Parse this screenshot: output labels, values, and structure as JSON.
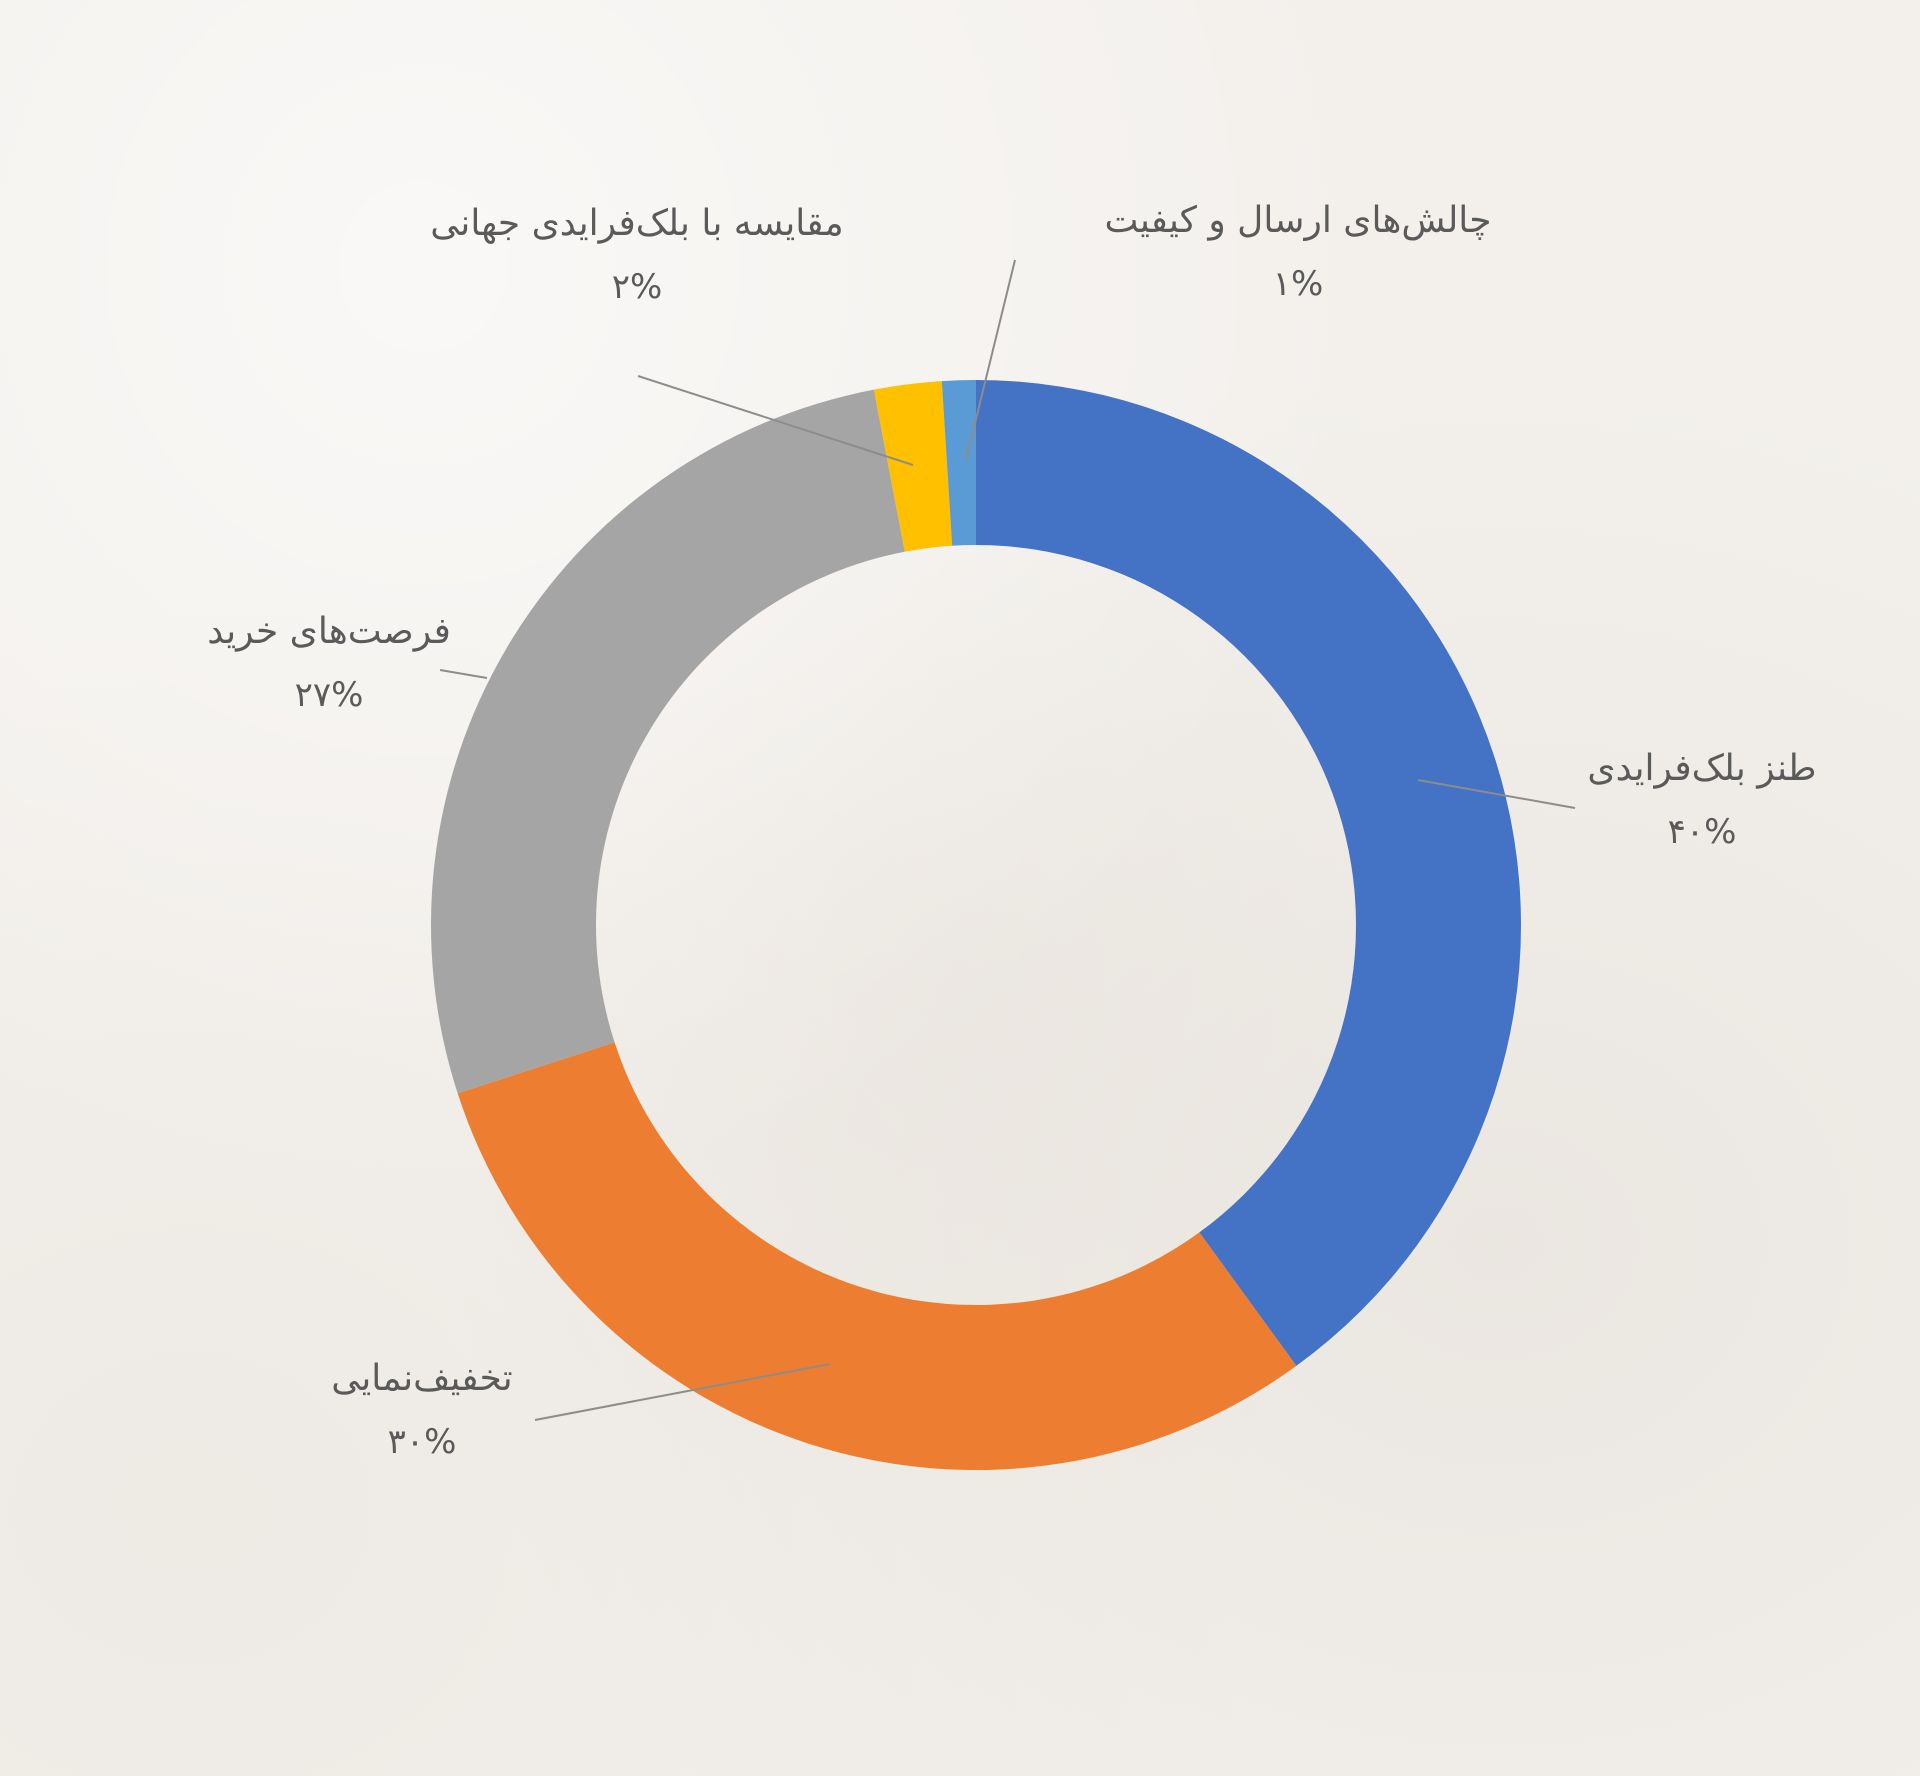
{
  "chart_data": {
    "type": "pie",
    "variant": "donut",
    "title": "",
    "legend": "none",
    "slices": [
      {
        "label": "طنز بلک‌فرایدی",
        "value": 40,
        "display": "۴۰%",
        "color": "#4472c4"
      },
      {
        "label": "تخفیف‌نمایی",
        "value": 30,
        "display": "۳۰%",
        "color": "#ed7d31"
      },
      {
        "label": "فرصت‌های خرید",
        "value": 27,
        "display": "۲۷%",
        "color": "#a5a5a5"
      },
      {
        "label": "مقایسه با بلک‌فرایدی جهانی",
        "value": 2,
        "display": "۲%",
        "color": "#ffc000"
      },
      {
        "label": "چالش‌های ارسال و کیفیت",
        "value": 1,
        "display": "۱%",
        "color": "#5b9bd5"
      }
    ]
  }
}
